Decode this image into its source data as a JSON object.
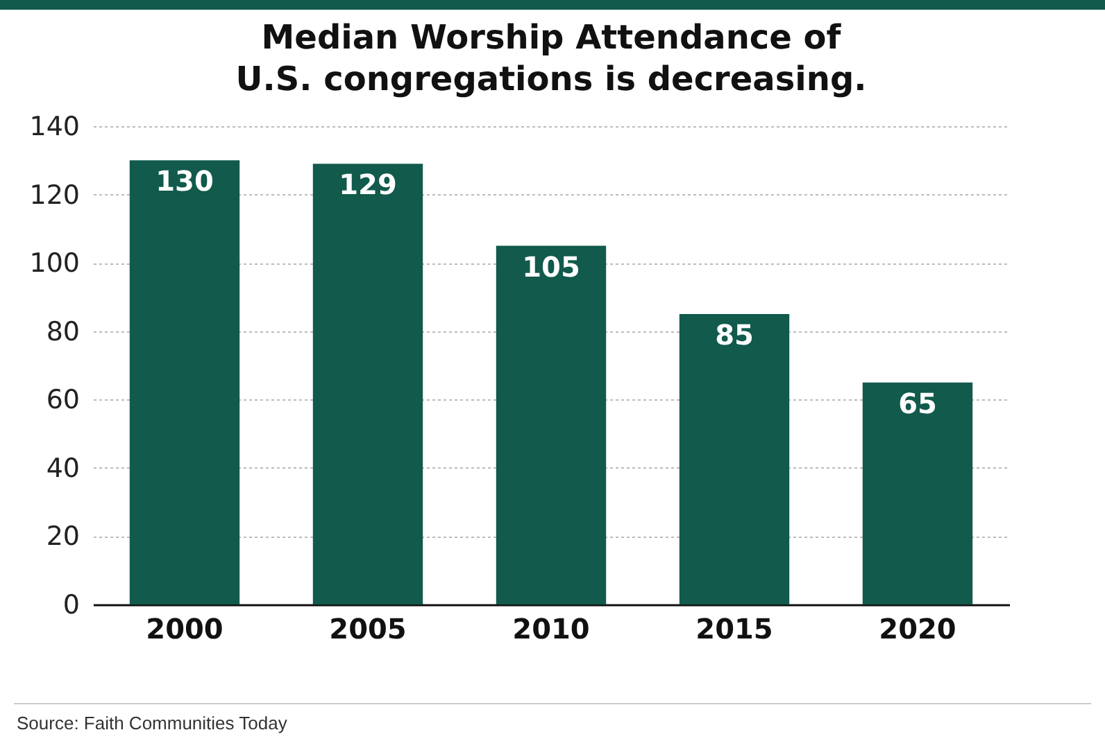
{
  "chart_data": {
    "type": "bar",
    "title": "Median Worship Attendance of\nU.S. congregations is decreasing.",
    "categories": [
      "2000",
      "2005",
      "2010",
      "2015",
      "2020"
    ],
    "values": [
      130,
      129,
      105,
      85,
      65
    ],
    "color": "#115a4c",
    "ylim": [
      0,
      140
    ],
    "yticks": [
      0,
      20,
      40,
      60,
      80,
      100,
      120,
      140
    ],
    "grid": "y",
    "data_labels": true,
    "annotations": [
      "Source: Faith Communities Today"
    ]
  }
}
